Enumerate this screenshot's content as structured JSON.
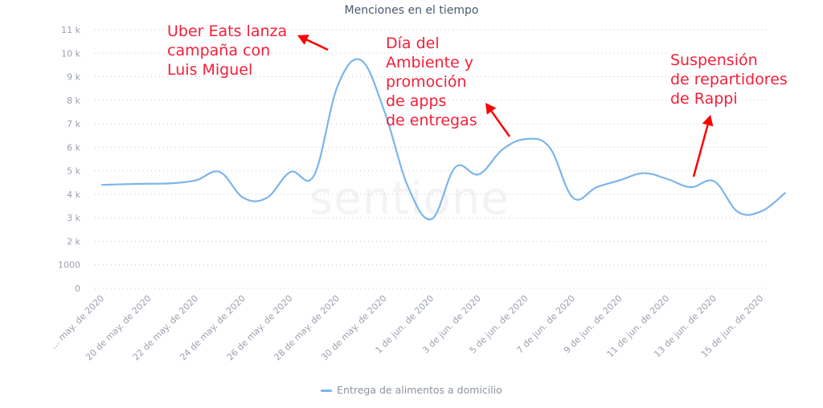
{
  "chart": {
    "title": "Menciones en el tiempo",
    "watermark": "sentione",
    "line_color": "#7cb5ec",
    "annotation_color": "#ff0000",
    "annotations": [
      {
        "text": "Uber Eats lanza\ncampaña con\nLuis Miguel",
        "target_date": "29 de may. de 2020"
      },
      {
        "text": "Día del\nAmbiente y\npromoción\nde apps\nde entregas",
        "target_date": "5 de jun. de 2020"
      },
      {
        "text": "Suspensión\nde repartidores\nde Rappi",
        "target_date": "13 de jun. de 2020"
      }
    ],
    "legend": {
      "label": "Entrega de alimentos a domicilio"
    }
  },
  "chart_data": {
    "type": "line",
    "title": "Menciones en el tiempo",
    "xlabel": "",
    "ylabel": "",
    "ylim": [
      0,
      11000
    ],
    "y_ticks": [
      "0",
      "1000",
      "2 k",
      "3 k",
      "4 k",
      "5 k",
      "6 k",
      "7 k",
      "8 k",
      "9 k",
      "10 k",
      "11 k"
    ],
    "x_tick_labels": [
      "… may. de 2020",
      "20 de may. de 2020",
      "22 de may. de 2020",
      "24 de may. de 2020",
      "26 de may. de 2020",
      "28 de may. de 2020",
      "30 de may. de 2020",
      "1 de jun. de 2020",
      "3 de jun. de 2020",
      "5 de jun. de 2020",
      "7 de jun. de 2020",
      "9 de jun. de 2020",
      "11 de jun. de 2020",
      "13 de jun. de 2020",
      "15 de jun. de 2020"
    ],
    "grid": true,
    "legend_position": "bottom",
    "x": [
      "18 may",
      "19 may",
      "20 may",
      "21 may",
      "22 may",
      "23 may",
      "24 may",
      "25 may",
      "26 may",
      "27 may",
      "28 may",
      "29 may",
      "30 may",
      "31 may",
      "1 jun",
      "2 jun",
      "3 jun",
      "4 jun",
      "5 jun",
      "6 jun",
      "7 jun",
      "8 jun",
      "9 jun",
      "10 jun",
      "11 jun",
      "12 jun",
      "13 jun",
      "14 jun",
      "15 jun",
      "16 jun"
    ],
    "series": [
      {
        "name": "Entrega de alimentos a domicilio",
        "values": [
          4400,
          4430,
          4450,
          4470,
          4600,
          4950,
          3850,
          3850,
          4950,
          4800,
          8600,
          9700,
          7500,
          4300,
          2950,
          5150,
          4850,
          5900,
          6350,
          6000,
          3850,
          4300,
          4600,
          4900,
          4650,
          4300,
          4550,
          3250,
          3280,
          4050
        ]
      }
    ],
    "annotations": [
      "Uber Eats lanza campaña con Luis Miguel",
      "Día del Ambiente y promoción de apps de entregas",
      "Suspensión de repartidores de Rappi"
    ]
  }
}
